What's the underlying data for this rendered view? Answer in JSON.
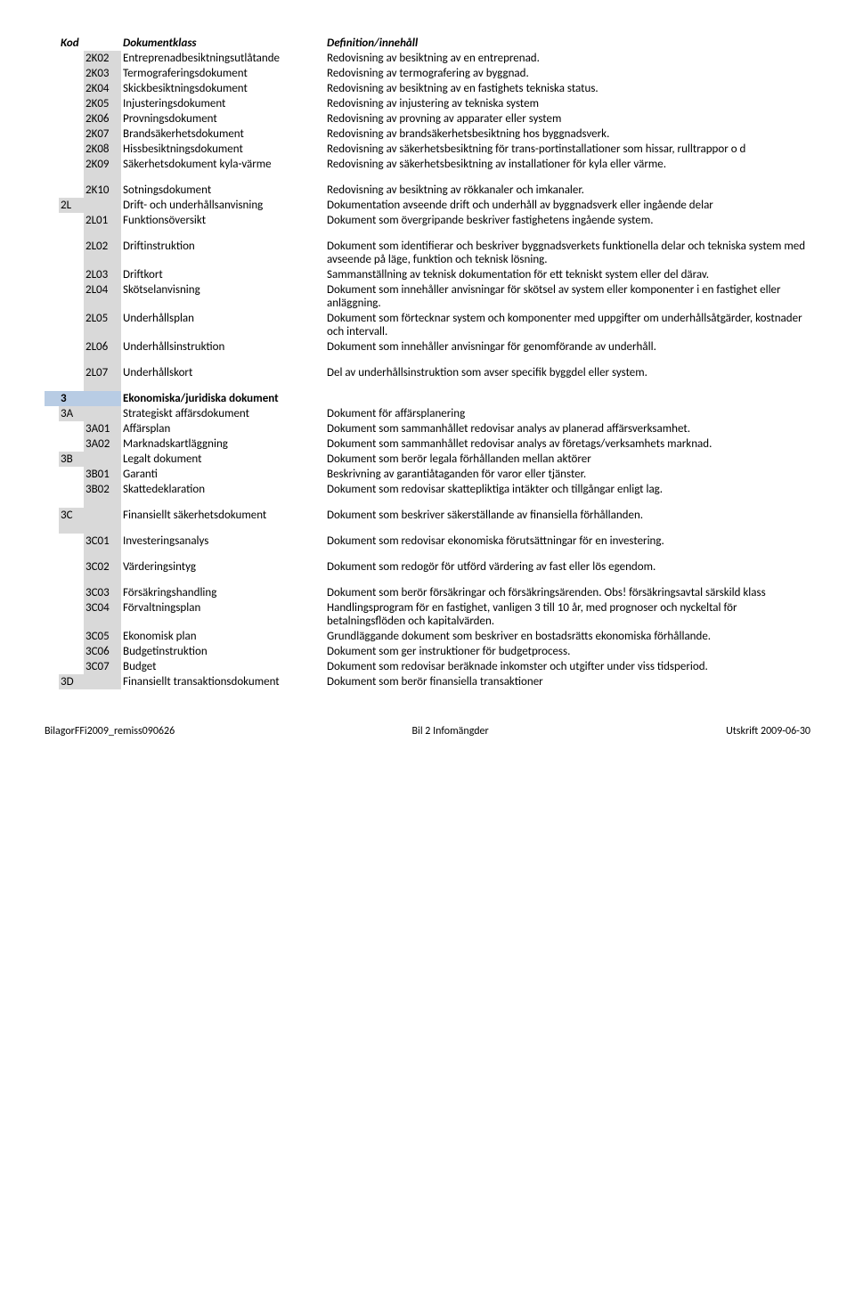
{
  "header": {
    "kod": "Kod",
    "klass": "Dokumentklass",
    "def": "Definition/innehåll"
  },
  "rows": [
    {
      "code": "2K02",
      "klass": "Entreprenadbesiktningsutlåtande",
      "def": "Redovisning av besiktning av en entreprenad.",
      "gray": true
    },
    {
      "code": "2K03",
      "klass": "Termograferingsdokument",
      "def": "Redovisning av termografering av byggnad.",
      "gray": true
    },
    {
      "code": "2K04",
      "klass": "Skickbesiktningsdokument",
      "def": "Redovisning av besiktning av en fastighets tekniska status.",
      "gray": true
    },
    {
      "code": "2K05",
      "klass": "Injusteringsdokument",
      "def": "Redovisning av injustering av tekniska system",
      "gray": true
    },
    {
      "code": "2K06",
      "klass": "Provningsdokument",
      "def": "Redovisning av provning av apparater eller system",
      "gray": true
    },
    {
      "code": "2K07",
      "klass": "Brandsäkerhetsdokument",
      "def": "Redovisning av brandsäkerhetsbesiktning hos byggnadsverk.",
      "gray": true
    },
    {
      "code": "2K08",
      "klass": "Hissbesiktningsdokument",
      "def": "Redovisning av säkerhetsbesiktning för trans-portinstallationer som hissar, rulltrappor o d",
      "gray": true
    },
    {
      "code": "2K09",
      "klass": "Säkerhetsdokument kyla-värme",
      "def": "Redovisning av säkerhetsbesiktning av installationer för kyla eller värme.",
      "gray": true,
      "spacerAfter": true
    },
    {
      "code": "2K10",
      "klass": "Sotningsdokument",
      "def": "Redovisning av besiktning av rökkanaler och imkanaler.",
      "gray": true
    },
    {
      "section": "2L",
      "klass": "Drift- och underhållsanvisning",
      "def": "Dokumentation avseende drift och underhåll av byggnadsverk eller ingående delar",
      "grayWide": true
    },
    {
      "code": "2L01",
      "klass": "Funktionsöversikt",
      "def": "Dokument som övergripande beskriver fastighetens ingående system.",
      "gray": true,
      "spacerAfter": true
    },
    {
      "code": "2L02",
      "klass": "Driftinstruktion",
      "def": "Dokument som identifierar och beskriver byggnadsverkets funktionella delar och tekniska system med avseende på läge, funktion och teknisk lösning.",
      "gray": true
    },
    {
      "code": "2L03",
      "klass": "Driftkort",
      "def": "Sammanställning av teknisk dokumentation för ett tekniskt system eller del därav.",
      "gray": true
    },
    {
      "code": "2L04",
      "klass": "Skötselanvisning",
      "def": "Dokument som innehåller anvisningar för skötsel av system eller komponenter i en fastighet eller anläggning.",
      "gray": true
    },
    {
      "code": "2L05",
      "klass": "Underhållsplan",
      "def": "Dokument som förtecknar system och komponenter med uppgifter om underhållsåtgärder, kostnader och intervall.",
      "gray": true
    },
    {
      "code": "2L06",
      "klass": "Underhållsinstruktion",
      "def": "Dokument som innehåller anvisningar för genomförande av underhåll.",
      "gray": true,
      "spacerAfter": true
    },
    {
      "code": "2L07",
      "klass": "Underhållskort",
      "def": "Del av underhållsinstruktion som avser specifik byggdel eller system.",
      "gray": true,
      "spacerAfter": true
    },
    {
      "chapter": "3",
      "klass": "Ekonomiska/juridiska dokument",
      "def": "",
      "bold": true,
      "blue": true
    },
    {
      "section": "3A",
      "klass": "Strategiskt affärsdokument",
      "def": "Dokument för affärsplanering",
      "grayWide": true
    },
    {
      "code": "3A01",
      "klass": "Affärsplan",
      "def": "Dokument som sammanhållet redovisar analys av planerad affärsverksamhet.",
      "gray": true
    },
    {
      "code": "3A02",
      "klass": "Marknadskartläggning",
      "def": "Dokument som sammanhållet redovisar analys av företags/verksamhets marknad.",
      "gray": true
    },
    {
      "section": "3B",
      "klass": "Legalt dokument",
      "def": "Dokument som berör legala förhållanden mellan aktörer",
      "grayWide": true
    },
    {
      "code": "3B01",
      "klass": "Garanti",
      "def": "Beskrivning av garantiåtaganden för varor eller tjänster.",
      "gray": true
    },
    {
      "code": "3B02",
      "klass": "Skattedeklaration",
      "def": "Dokument som redovisar skattepliktiga intäkter och tillgångar enligt lag.",
      "gray": true,
      "spacerAfter": true
    },
    {
      "section": "3C",
      "klass": "Finansiellt säkerhetsdokument",
      "def": "Dokument som beskriver säkerställande av finansiella förhållanden.",
      "grayWide": true,
      "spacerAfter": true
    },
    {
      "code": "3C01",
      "klass": "Investeringsanalys",
      "def": "Dokument som redovisar ekonomiska förutsättningar för en investering.",
      "gray": true,
      "spacerAfter": true
    },
    {
      "code": "3C02",
      "klass": "Värderingsintyg",
      "def": "Dokument som redogör för utförd värdering av fast eller lös egendom.",
      "gray": true,
      "spacerAfter": true
    },
    {
      "code": "3C03",
      "klass": "Försäkringshandling",
      "def": "Dokument som berör försäkringar och försäkringsärenden. Obs! försäkringsavtal särskild klass",
      "gray": true
    },
    {
      "code": "3C04",
      "klass": "Förvaltningsplan",
      "def": "Handlingsprogram för en fastighet, vanligen 3 till 10 år, med prognoser och nyckeltal för betalningsflöden och kapitalvärden.",
      "gray": true
    },
    {
      "code": "3C05",
      "klass": "Ekonomisk plan",
      "def": "Grundläggande dokument som beskriver en bostadsrätts ekonomiska förhållande.",
      "gray": true
    },
    {
      "code": "3C06",
      "klass": "Budgetinstruktion",
      "def": "Dokument som ger instruktioner för budgetprocess.",
      "gray": true
    },
    {
      "code": "3C07",
      "klass": "Budget",
      "def": "Dokument som redovisar beräknade inkomster och utgifter under viss tidsperiod.",
      "gray": true
    },
    {
      "section": "3D",
      "klass": "Finansiellt transaktionsdokument",
      "def": "Dokument som berör finansiella transaktioner",
      "grayWide": true
    }
  ],
  "footer": {
    "left": "BilagorFFi2009_remiss090626",
    "center": "Bil 2 Infomängder",
    "right": "Utskrift 2009-06-30"
  }
}
